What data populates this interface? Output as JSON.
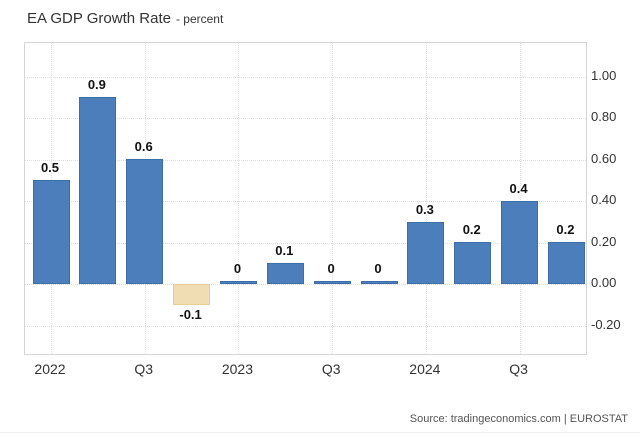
{
  "header": {
    "title": "EA GDP Growth Rate",
    "subtitle": "- percent"
  },
  "footer": {
    "source": "Source: tradingeconomics.com | EUROSTAT"
  },
  "chart_data": {
    "type": "bar",
    "title": "EA GDP Growth Rate",
    "ylabel": "percent",
    "values": [
      0.5,
      0.9,
      0.6,
      -0.1,
      0,
      0.1,
      0,
      0,
      0.3,
      0.2,
      0.4,
      0.2
    ],
    "bar_labels": [
      "0.5",
      "0.9",
      "0.6",
      "-0.1",
      "0",
      "0.1",
      "0",
      "0",
      "0.3",
      "0.2",
      "0.4",
      "0.2"
    ],
    "x_tick_labels": [
      "2022",
      "Q3",
      "2023",
      "Q3",
      "2024",
      "Q3"
    ],
    "x_tick_bar_index": [
      0,
      2,
      4,
      6,
      8,
      10
    ],
    "y_tick_labels": [
      "1.00",
      "0.80",
      "0.60",
      "0.40",
      "0.20",
      "0.00",
      "-0.20"
    ],
    "y_ticks": [
      1.0,
      0.8,
      0.6,
      0.4,
      0.2,
      0.0,
      -0.2
    ],
    "ylim": [
      -0.35,
      1.16
    ],
    "grid": "dotted",
    "y_axis_position": "right",
    "legend": "none",
    "colors": {
      "positive_bar": "#4d7ebc",
      "positive_bar_border": "#3f6ea7",
      "negative_bar": "#f1ddb3",
      "negative_bar_border": "#e4cc9e"
    }
  }
}
